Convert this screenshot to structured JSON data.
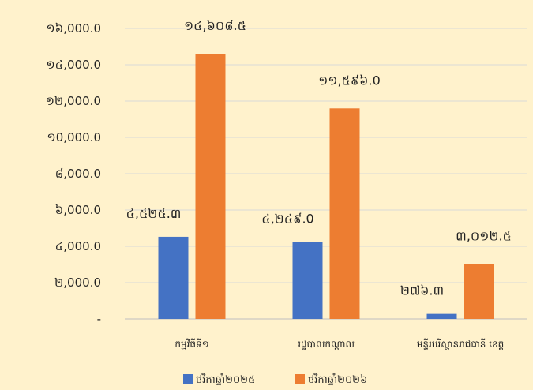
{
  "chart_data": {
    "type": "bar",
    "title": "",
    "xlabel": "",
    "ylabel": "",
    "ylim": [
      0,
      16000
    ],
    "grid": true,
    "legend_position": "bottom",
    "y_tick_labels": [
      "-",
      "២,000.0",
      "៤,000.0",
      "៦,000.0",
      "៨,000.0",
      "១0,000.0",
      "១២,000.0",
      "១៤,000.0",
      "១៦,000.0"
    ],
    "categories": [
      "កម្មវិធីទី១",
      "រដ្ឋបាលកណ្ដាល",
      "មន្ទីរបរិស្ថានរាជធានី ខេត្ត"
    ],
    "series": [
      {
        "name": "ថវិកាឆ្នាំ២០២៥",
        "color": "#4472C4",
        "values": [
          4525.3,
          4249.0,
          276.3
        ],
        "labels": [
          "៤,៥២៥.៣",
          "៤,២៤៩.0",
          "២៧៦.៣"
        ]
      },
      {
        "name": "ថវិកាឆ្នាំ២០២៦",
        "color": "#ED7D31",
        "values": [
          14608.5,
          11596.0,
          3012.5
        ],
        "labels": [
          "១៤,៦០៨.៥",
          "១១,៥៩៦.0",
          "៣,០១២.៥"
        ]
      }
    ]
  }
}
